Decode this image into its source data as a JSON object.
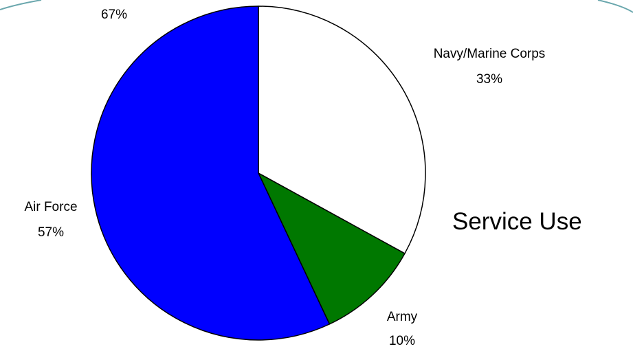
{
  "chart_data": {
    "type": "pie",
    "title": "Service Use",
    "slices": [
      {
        "label": "Navy/Marine Corps",
        "value": 33,
        "value_label": "33%",
        "color": "#ffffff"
      },
      {
        "label": "Army",
        "value": 10,
        "value_label": "10%",
        "color": "#007800"
      },
      {
        "label": "Air Force",
        "value": 57,
        "value_label": "57%",
        "color": "#0000ff"
      }
    ],
    "fragment_label": "67%",
    "background_arc_color": "#cfeef2"
  }
}
